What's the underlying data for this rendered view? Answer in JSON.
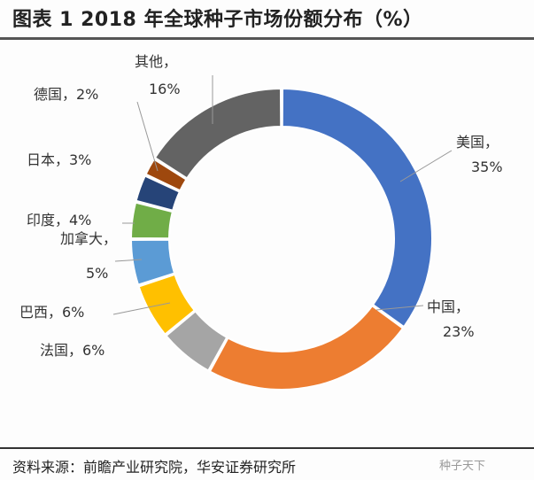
{
  "chart_data": {
    "type": "pie",
    "variant": "donut",
    "title": "图表 1 2018 年全球种子市场份额分布（%）",
    "unit": "%",
    "slices": [
      {
        "name": "美国",
        "value": 35,
        "label": "35%",
        "color": "#4472C4"
      },
      {
        "name": "中国",
        "value": 23,
        "label": "23%",
        "color": "#ED7D31"
      },
      {
        "name": "法国",
        "value": 6,
        "label": "6%",
        "color": "#A5A5A5"
      },
      {
        "name": "巴西",
        "value": 6,
        "label": "6%",
        "color": "#FFC000"
      },
      {
        "name": "加拿大",
        "value": 5,
        "label": "5%",
        "color": "#5B9BD5"
      },
      {
        "name": "印度",
        "value": 4,
        "label": "4%",
        "color": "#70AD47"
      },
      {
        "name": "日本",
        "value": 3,
        "label": "3%",
        "color": "#264478"
      },
      {
        "name": "德国",
        "value": 2,
        "label": "2%",
        "color": "#9E480E"
      },
      {
        "name": "其他",
        "value": 16,
        "label": "16%",
        "color": "#636363"
      }
    ],
    "start": "12 o'clock, clockwise"
  },
  "source": "资料来源：前瞻产业研究院，华安证券研究所",
  "watermark": "种子天下"
}
